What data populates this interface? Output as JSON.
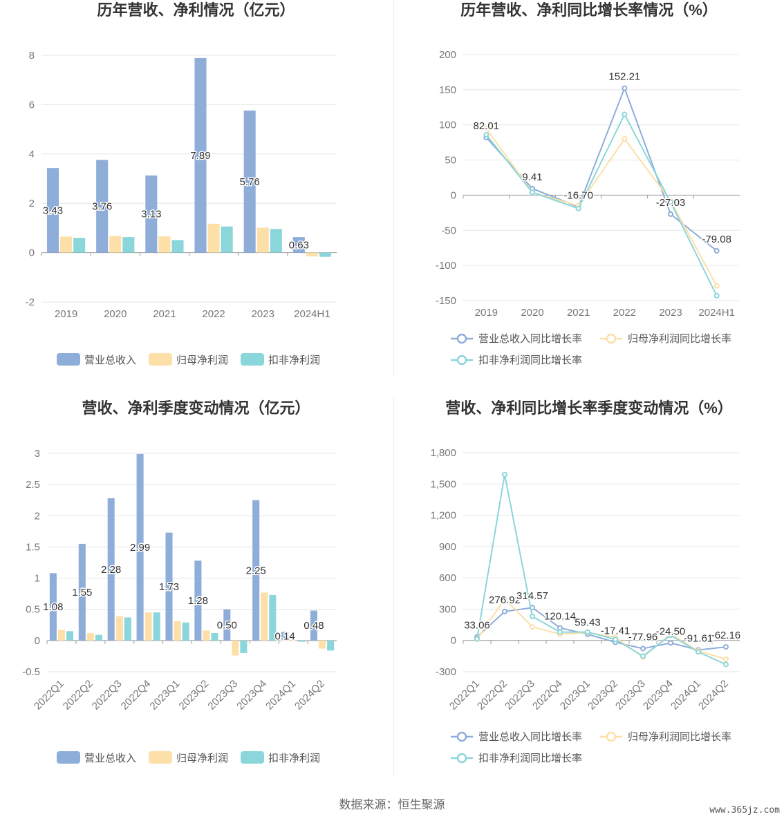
{
  "footer": {
    "source": "数据来源：恒生聚源",
    "watermark": "www.365jz.com"
  },
  "colors": {
    "revenue": "#8eadd9",
    "net_profit": "#fddfa8",
    "deducted_profit": "#8ad6da"
  },
  "chart_data": [
    {
      "id": "annual",
      "type": "bar",
      "title": "历年营收、净利情况（亿元）",
      "categories": [
        "2019",
        "2020",
        "2021",
        "2022",
        "2023",
        "2024H1"
      ],
      "ylim": [
        -2,
        8
      ],
      "yticks": [
        -2,
        0,
        2,
        4,
        6,
        8
      ],
      "grid": true,
      "legend": "bottom",
      "series": [
        {
          "name": "营业总收入",
          "color": "#8eadd9",
          "values": [
            3.43,
            3.76,
            3.13,
            7.89,
            5.76,
            0.63
          ],
          "labels": [
            "3.43",
            "3.76",
            "3.13",
            "7.89",
            "5.76",
            "0.63"
          ]
        },
        {
          "name": "归母净利润",
          "color": "#fddfa8",
          "values": [
            0.65,
            0.68,
            0.66,
            1.17,
            1.01,
            -0.15
          ]
        },
        {
          "name": "扣非净利润",
          "color": "#8ad6da",
          "values": [
            0.6,
            0.63,
            0.51,
            1.06,
            0.96,
            -0.17
          ]
        }
      ]
    },
    {
      "id": "annual-growth",
      "type": "line",
      "title": "历年营收、净利同比增长率情况（%）",
      "categories": [
        "2019",
        "2020",
        "2021",
        "2022",
        "2023",
        "2024H1"
      ],
      "ylim": [
        -150,
        200
      ],
      "yticks": [
        -150,
        -100,
        -50,
        0,
        50,
        100,
        150,
        200
      ],
      "grid": true,
      "legend": "bottom",
      "series": [
        {
          "name": "营业总收入同比增长率",
          "color": "#8eadd9",
          "values": [
            82.01,
            9.41,
            -16.7,
            152.21,
            -27.03,
            -79.08
          ],
          "labels": [
            "82.01",
            "9.41",
            "-16.70",
            "152.21",
            "-27.03",
            "-79.08"
          ]
        },
        {
          "name": "归母净利润同比增长率",
          "color": "#fddfa8",
          "values": [
            95,
            4,
            -15,
            80,
            -8,
            -129
          ]
        },
        {
          "name": "扣非净利润同比增长率",
          "color": "#8ad6da",
          "values": [
            86,
            4,
            -19,
            115,
            -10,
            -143
          ]
        }
      ]
    },
    {
      "id": "quarterly",
      "type": "bar",
      "title": "营收、净利季度变动情况（亿元）",
      "categories": [
        "2022Q1",
        "2022Q2",
        "2022Q3",
        "2022Q4",
        "2023Q1",
        "2023Q2",
        "2023Q3",
        "2023Q4",
        "2024Q1",
        "2024Q2"
      ],
      "ylim": [
        -0.5,
        3
      ],
      "yticks": [
        -0.5,
        0,
        0.5,
        1,
        1.5,
        2,
        2.5,
        3
      ],
      "ytick_labels": [
        "-0.5",
        "0",
        "0.5",
        "1",
        "1.5",
        "2",
        "2.5",
        "3"
      ],
      "grid": true,
      "legend": "bottom",
      "series": [
        {
          "name": "营业总收入",
          "color": "#8eadd9",
          "values": [
            1.08,
            1.55,
            2.28,
            2.99,
            1.73,
            1.28,
            0.5,
            2.25,
            0.14,
            0.48
          ],
          "labels": [
            "1.08",
            "1.55",
            "2.28",
            "2.99",
            "1.73",
            "1.28",
            "0.50",
            "2.25",
            "0.14",
            "0.48"
          ]
        },
        {
          "name": "归母净利润",
          "color": "#fddfa8",
          "values": [
            0.17,
            0.12,
            0.39,
            0.45,
            0.31,
            0.16,
            -0.24,
            0.77,
            -0.01,
            -0.13
          ]
        },
        {
          "name": "扣非净利润",
          "color": "#8ad6da",
          "values": [
            0.15,
            0.09,
            0.37,
            0.45,
            0.29,
            0.12,
            -0.2,
            0.73,
            -0.02,
            -0.16
          ]
        }
      ]
    },
    {
      "id": "quarterly-growth",
      "type": "line",
      "title": "营收、净利同比增长率季度变动情况（%）",
      "categories": [
        "2022Q1",
        "2022Q2",
        "2022Q3",
        "2022Q4",
        "2023Q1",
        "2023Q2",
        "2023Q3",
        "2023Q4",
        "2024Q1",
        "2024Q2"
      ],
      "ylim": [
        -300,
        1800
      ],
      "yticks": [
        -300,
        0,
        300,
        600,
        900,
        1200,
        1500,
        1800
      ],
      "ytick_labels": [
        "-300",
        "0",
        "300",
        "600",
        "900",
        "1,200",
        "1,500",
        "1,800"
      ],
      "grid": true,
      "legend": "bottom",
      "series": [
        {
          "name": "营业总收入同比增长率",
          "color": "#8eadd9",
          "values": [
            33.06,
            276.92,
            314.57,
            120.14,
            59.43,
            -17.41,
            -77.96,
            -24.5,
            -91.61,
            -62.16
          ],
          "labels": [
            "33.06",
            "276.92",
            "314.57",
            "120.14",
            "59.43",
            "-17.41",
            "-77.96",
            "-24.50",
            "-91.61",
            "-62.16"
          ]
        },
        {
          "name": "归母净利润同比增长率",
          "color": "#fddfa8",
          "values": [
            10,
            400,
            130,
            60,
            75,
            30,
            -160,
            60,
            -100,
            -180
          ]
        },
        {
          "name": "扣非净利润同比增长率",
          "color": "#8ad6da",
          "values": [
            15,
            1590,
            230,
            80,
            80,
            10,
            -150,
            50,
            -110,
            -230
          ]
        }
      ]
    }
  ]
}
